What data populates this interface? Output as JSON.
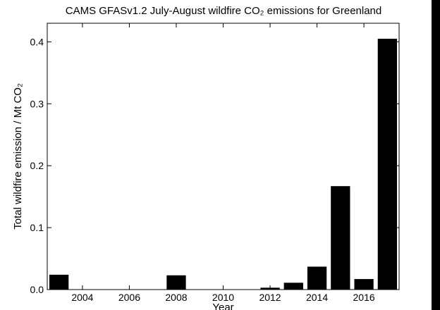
{
  "chart_data": {
    "type": "bar",
    "title": "CAMS GFASv1.2 July-August wildfire CO₂ emissions for Greenland",
    "xlabel": "Year",
    "ylabel": "Total wildfire emission / Mt CO₂",
    "x": [
      2003,
      2004,
      2005,
      2006,
      2007,
      2008,
      2009,
      2010,
      2011,
      2012,
      2013,
      2014,
      2015,
      2016,
      2017
    ],
    "values": [
      0.024,
      0.0,
      0.0,
      0.0,
      0.0,
      0.023,
      0.0,
      0.0,
      0.0,
      0.003,
      0.011,
      0.037,
      0.167,
      0.017,
      0.405
    ],
    "xlim": [
      2002.5,
      2017.5
    ],
    "ylim": [
      0,
      0.43
    ],
    "xticks": [
      "2004",
      "2006",
      "2008",
      "2010",
      "2012",
      "2014",
      "2016"
    ],
    "yticks": [
      "0.0",
      "0.1",
      "0.2",
      "0.3",
      "0.4"
    ],
    "grid": false,
    "legend": "none",
    "bar_color": "#000000"
  },
  "colors": {
    "background": "#ffffff",
    "bars": "#000000",
    "right_edge": "#000000"
  }
}
